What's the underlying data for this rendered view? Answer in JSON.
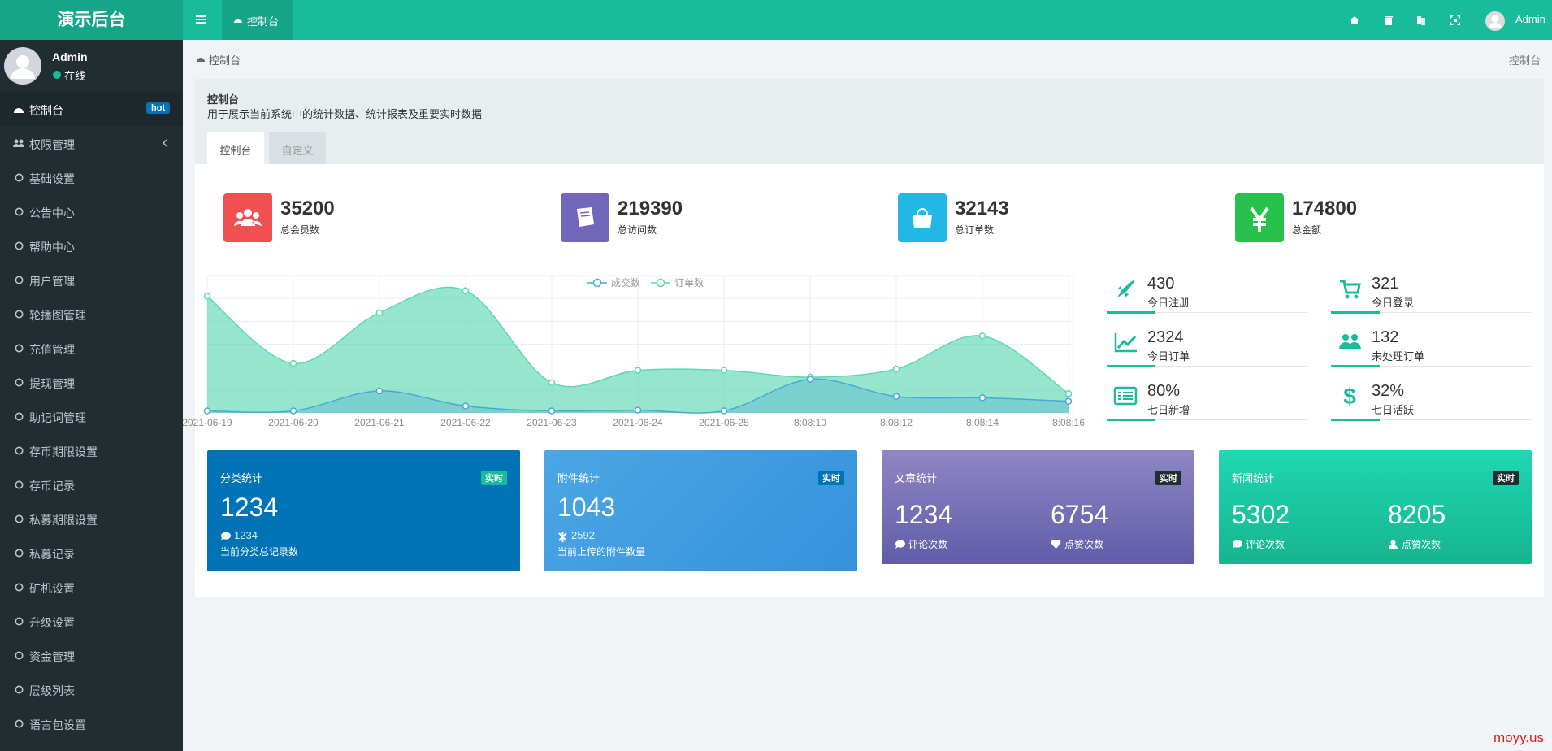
{
  "brand": "演示后台",
  "top_tab": "控制台",
  "top_user": "Admin",
  "user": {
    "name": "Admin",
    "status": "在线"
  },
  "menu": [
    {
      "label": "控制台",
      "badge": "hot"
    },
    {
      "label": "权限管理"
    },
    {
      "label": "基础设置"
    },
    {
      "label": "公告中心"
    },
    {
      "label": "帮助中心"
    },
    {
      "label": "用户管理"
    },
    {
      "label": "轮播图管理"
    },
    {
      "label": "充值管理"
    },
    {
      "label": "提现管理"
    },
    {
      "label": "助记词管理"
    },
    {
      "label": "存币期限设置"
    },
    {
      "label": "存币记录"
    },
    {
      "label": "私募期限设置"
    },
    {
      "label": "私募记录"
    },
    {
      "label": "矿机设置"
    },
    {
      "label": "升级设置"
    },
    {
      "label": "资金管理"
    },
    {
      "label": "层级列表"
    },
    {
      "label": "语言包设置"
    }
  ],
  "breadcrumb": "控制台",
  "breadcrumb_right": "控制台",
  "panel": {
    "title": "控制台",
    "desc": "用于展示当前系统中的统计数据、统计报表及重要实时数据",
    "tabs": [
      "控制台",
      "自定义"
    ]
  },
  "stats": [
    {
      "value": 35200,
      "label": "总会员数",
      "color": "#f05050"
    },
    {
      "value": 219390,
      "label": "总访问数",
      "color": "#7266ba"
    },
    {
      "value": 32143,
      "label": "总订单数",
      "color": "#23b7e5"
    },
    {
      "value": 174800,
      "label": "总金额",
      "color": "#27c24c"
    }
  ],
  "chart_data": {
    "type": "area",
    "categories": [
      "2021-06-19",
      "2021-06-20",
      "2021-06-21",
      "2021-06-22",
      "2021-06-23",
      "2021-06-24",
      "2021-06-25",
      "8:08:10",
      "8:08:12",
      "8:08:14",
      "8:08:16"
    ],
    "series": [
      {
        "name": "成交数",
        "color": "#4aa8d8",
        "values": [
          15,
          15,
          160,
          50,
          15,
          20,
          15,
          245,
          120,
          110,
          85
        ]
      },
      {
        "name": "订单数",
        "color": "#5ed8b2",
        "values": [
          850,
          360,
          730,
          890,
          220,
          310,
          310,
          260,
          320,
          560,
          140
        ]
      }
    ],
    "ylim": [
      0,
      1000
    ],
    "grid": true,
    "legend": "top"
  },
  "mini_stats": [
    {
      "value": 430,
      "label": "今日注册"
    },
    {
      "value": 321,
      "label": "今日登录"
    },
    {
      "value": 2324,
      "label": "今日订单"
    },
    {
      "value": 132,
      "label": "未处理订单"
    },
    {
      "value": "80%",
      "label": "七日新增"
    },
    {
      "value": "32%",
      "label": "七日活跃"
    }
  ],
  "cards": [
    {
      "title": "分类统计",
      "badge": "实时",
      "value": 1234,
      "sub": 1234,
      "desc": "当前分类总记录数"
    },
    {
      "title": "附件统计",
      "badge": "实时",
      "value": 1043,
      "sub": 2592,
      "desc": "当前上传的附件数量"
    },
    {
      "title": "文章统计",
      "badge": "实时",
      "pairs": [
        {
          "value": 1234,
          "label": "评论次数"
        },
        {
          "value": 6754,
          "label": "点赞次数"
        }
      ]
    },
    {
      "title": "新闻统计",
      "badge": "实时",
      "pairs": [
        {
          "value": 5302,
          "label": "评论次数"
        },
        {
          "value": 8205,
          "label": "点赞次数"
        }
      ]
    }
  ],
  "watermark": "moyy.us"
}
